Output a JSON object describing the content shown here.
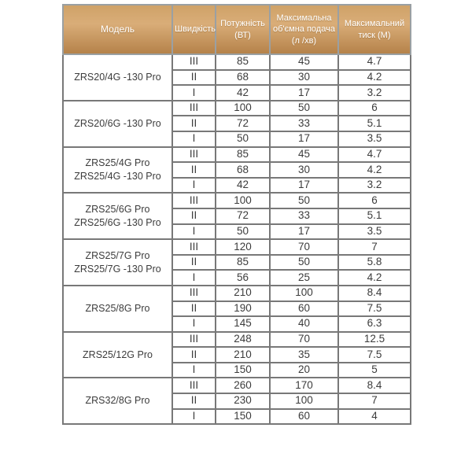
{
  "table": {
    "columns": [
      {
        "label": "Модель"
      },
      {
        "label": "Швидкість"
      },
      {
        "label": "Потужність\n(ВТ)"
      },
      {
        "label": "Максимальна\nоб'ємна подача\n(л /хв)"
      },
      {
        "label": "Максимальний\nтиск (М)"
      }
    ],
    "groups": [
      {
        "model": "ZRS20/4G -130 Pro",
        "rows": [
          {
            "speed": "III",
            "power": "85",
            "flow": "45",
            "pressure": "4.7"
          },
          {
            "speed": "II",
            "power": "68",
            "flow": "30",
            "pressure": "4.2"
          },
          {
            "speed": "I",
            "power": "42",
            "flow": "17",
            "pressure": "3.2"
          }
        ]
      },
      {
        "model": "ZRS20/6G -130 Pro",
        "rows": [
          {
            "speed": "III",
            "power": "100",
            "flow": "50",
            "pressure": "6"
          },
          {
            "speed": "II",
            "power": "72",
            "flow": "33",
            "pressure": "5.1"
          },
          {
            "speed": "I",
            "power": "50",
            "flow": "17",
            "pressure": "3.5"
          }
        ]
      },
      {
        "model": "ZRS25/4G Pro\nZRS25/4G -130 Pro",
        "rows": [
          {
            "speed": "III",
            "power": "85",
            "flow": "45",
            "pressure": "4.7"
          },
          {
            "speed": "II",
            "power": "68",
            "flow": "30",
            "pressure": "4.2"
          },
          {
            "speed": "I",
            "power": "42",
            "flow": "17",
            "pressure": "3.2"
          }
        ]
      },
      {
        "model": "ZRS25/6G Pro\nZRS25/6G -130 Pro",
        "rows": [
          {
            "speed": "III",
            "power": "100",
            "flow": "50",
            "pressure": "6"
          },
          {
            "speed": "II",
            "power": "72",
            "flow": "33",
            "pressure": "5.1"
          },
          {
            "speed": "I",
            "power": "50",
            "flow": "17",
            "pressure": "3.5"
          }
        ]
      },
      {
        "model": "ZRS25/7G Pro\nZRS25/7G -130 Pro",
        "rows": [
          {
            "speed": "III",
            "power": "120",
            "flow": "70",
            "pressure": "7"
          },
          {
            "speed": "II",
            "power": "85",
            "flow": "50",
            "pressure": "5.8"
          },
          {
            "speed": "I",
            "power": "56",
            "flow": "25",
            "pressure": "4.2"
          }
        ]
      },
      {
        "model": "ZRS25/8G Pro",
        "rows": [
          {
            "speed": "III",
            "power": "210",
            "flow": "100",
            "pressure": "8.4"
          },
          {
            "speed": "II",
            "power": "190",
            "flow": "60",
            "pressure": "7.5"
          },
          {
            "speed": "I",
            "power": "145",
            "flow": "40",
            "pressure": "6.3"
          }
        ]
      },
      {
        "model": "ZRS25/12G Pro",
        "rows": [
          {
            "speed": "III",
            "power": "248",
            "flow": "70",
            "pressure": "12.5"
          },
          {
            "speed": "II",
            "power": "210",
            "flow": "35",
            "pressure": "7.5"
          },
          {
            "speed": "I",
            "power": "150",
            "flow": "20",
            "pressure": "5"
          }
        ]
      },
      {
        "model": "ZRS32/8G Pro",
        "rows": [
          {
            "speed": "III",
            "power": "260",
            "flow": "170",
            "pressure": "8.4"
          },
          {
            "speed": "II",
            "power": "230",
            "flow": "100",
            "pressure": "7"
          },
          {
            "speed": "I",
            "power": "150",
            "flow": "60",
            "pressure": "4"
          }
        ]
      }
    ],
    "colors": {
      "header_gradient_top": "#cfa268",
      "header_gradient_mid": "#d9ad78",
      "header_gradient_bottom": "#b5824a",
      "header_text": "#ffffff",
      "header_border": "#9aa0a3",
      "border": "#787878",
      "body_text": "#3c3c3c",
      "body_bg": "#ffffff"
    }
  }
}
